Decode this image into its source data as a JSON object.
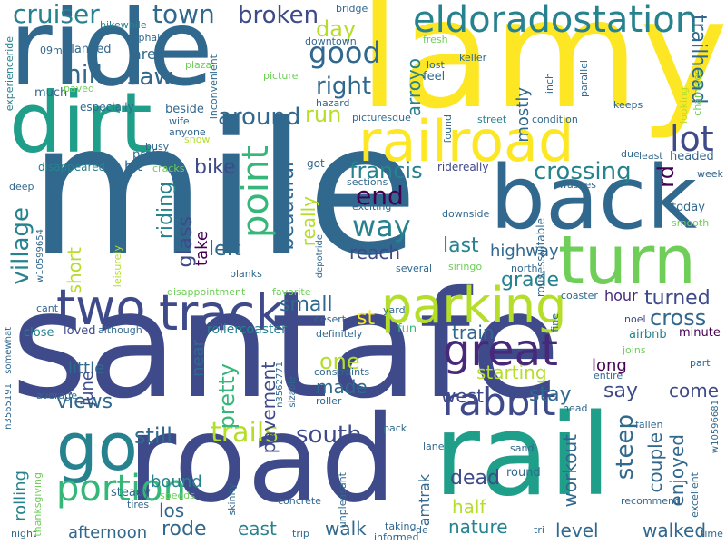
{
  "title": "",
  "palette": [
    "#440154",
    "#482878",
    "#3e4a89",
    "#31688e",
    "#26828e",
    "#1f9e89",
    "#35b779",
    "#6ece58",
    "#b5de2b",
    "#fde725"
  ],
  "words": {
    "santafe": "santafe",
    "mile": "mile",
    "ride": "ride",
    "lamy": "lamy",
    "road": "road",
    "rail": "rail",
    "back": "back",
    "dirt": "dirt",
    "turn": "turn",
    "railroad": "railroad",
    "track": "track",
    "two": "two",
    "parking": "parking",
    "great": "great",
    "go": "go",
    "eldoradostation": "eldoradostation",
    "point": "point",
    "rabbit": "rabbit",
    "portion": "portion",
    "trails": "trails",
    "south": "south",
    "good": "good",
    "crossing": "crossing",
    "lot": "lot",
    "way": "way",
    "end": "end",
    "francis": "francis",
    "broken": "broken",
    "cruiser": "cruiser",
    "town": "town",
    "hill": "hill",
    "saw": "saw",
    "around": "around",
    "right": "right",
    "day": "day",
    "run": "run",
    "village": "village",
    "bike": "bike",
    "riding": "riding",
    "beautiful": "beautiful",
    "glass": "glass",
    "left": "left",
    "take": "take",
    "really": "really",
    "reach": "reach",
    "last": "last",
    "highway": "highway",
    "short": "short",
    "small": "small",
    "st": "st",
    "grade": "grade",
    "turned": "turned",
    "cross": "cross",
    "trailhead": "trailhead",
    "hour": "hour",
    "rd": "rd",
    "arroyo": "arroyo",
    "mostly": "mostly",
    "one": "one",
    "made": "made",
    "west": "west",
    "train": "train",
    "starting": "starting",
    "stay": "stay",
    "say": "say",
    "come": "come",
    "long": "long",
    "views": "views",
    "still": "still",
    "pretty": "pretty",
    "pavement": "pavement",
    "little": "little",
    "june": "june",
    "steep": "steep",
    "couple": "couple",
    "enjoyed": "enjoyed",
    "workout": "workout",
    "dead": "dead",
    "half": "half",
    "nature": "nature",
    "level": "level",
    "walked": "walked",
    "walk": "walk",
    "east": "east",
    "rode": "rode",
    "los": "los",
    "bound": "bound",
    "afternoon": "afternoon",
    "rolling": "rolling",
    "amtrak": "amtrak",
    "near": "near",
    "rollercoaster": "rollercoaster",
    "minute": "minute",
    "airbnb": "airbnb",
    "joins": "joins",
    "noel": "noel",
    "loved": "loved",
    "fun": "fun",
    "although": "although",
    "close": "close",
    "desert": "desert",
    "definitely": "definitely",
    "steady": "steady",
    "round": "round",
    "area": "area",
    "bit": "bit",
    "disappeared": "disappeared",
    "especially": "especially",
    "feel": "feel",
    "lost": "lost",
    "picturesque": "picturesque",
    "ridereally": "ridereally",
    "sections": "sections",
    "exciting": "exciting",
    "downside": "downside",
    "several": "several",
    "siringo": "siringo",
    "rousessuitable": "rousessuitable",
    "north": "north",
    "coaster": "coaster",
    "fine": "fine",
    "today": "today",
    "headed": "headed",
    "week": "week",
    "smooth": "smooth",
    "washes": "washes",
    "due": "due",
    "least": "least",
    "keeps": "keeps",
    "parallel": "parallel",
    "condition": "condition",
    "street": "street",
    "found": "found",
    "inch": "inch",
    "chamisos": "chamisos",
    "looking": "looking",
    "keller": "keller",
    "fresh": "fresh",
    "hazard": "hazard",
    "picture": "picture",
    "downtown": "downtown",
    "bridge": "bridge",
    "asphalt": "asphalt",
    "bikewhile": "bikewhile",
    "planned": "planned",
    "09my": "09my",
    "prefer": "prefer",
    "plaza": "plaza",
    "inconvenient": "inconvenient",
    "much": "much",
    "paved": "paved",
    "beside": "beside",
    "wife": "wife",
    "anyone": "anyone",
    "snow": "snow",
    "busy": "busy",
    "cracks": "cracks",
    "got": "got",
    "experienceride": "experienceride",
    "deep": "deep",
    "w10599654": "w10599654",
    "leisurely": "leisurely",
    "planks": "planks",
    "depotride": "depotride",
    "disappointment": "disappointment",
    "favorite": "favorite",
    "yard": "yard",
    "cant": "cant",
    "somewhat": "somewhat",
    "n3562771": "n3562771",
    "sizable": "sizable",
    "constraints": "constraints",
    "roller": "roller",
    "average": "average",
    "n3565191": "n3565191",
    "thanksgiving": "thanksgiving",
    "skinny": "skinny",
    "concrete": "concrete",
    "unpleasant": "unpleasant",
    "pack": "pack",
    "lane": "lane",
    "de": "de",
    "sand": "sand",
    "tires": "tires",
    "speeds": "speeds",
    "trip": "trip",
    "taking": "taking",
    "informed": "informed",
    "tri": "tri",
    "entire": "entire",
    "part": "part",
    "head": "head",
    "fallen": "fallen",
    "recommend": "recommend",
    "excellent": "excellent",
    "w10596681": "w10596681",
    "time": "time",
    "night": "night"
  }
}
